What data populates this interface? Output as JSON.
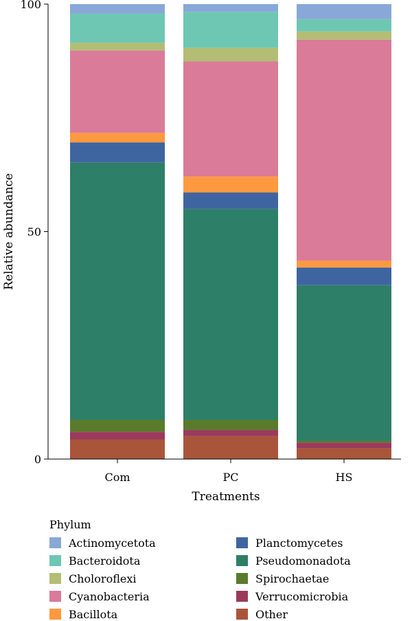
{
  "chart_data": {
    "type": "bar",
    "stacked": true,
    "xlabel": "Treatments",
    "ylabel": "Relative abundance",
    "ylim": [
      0,
      100
    ],
    "yticks": [
      0,
      50,
      100
    ],
    "categories": [
      "Com",
      "PC",
      "HS"
    ],
    "grid": false,
    "legend": {
      "title": "Phylum",
      "placement": "bottom",
      "columns": 2
    },
    "series": [
      {
        "name": "Other",
        "color": "#a9553a",
        "values": [
          4.3,
          5.0,
          2.4
        ]
      },
      {
        "name": "Verrucomicrobia",
        "color": "#9b3a5d",
        "values": [
          1.7,
          1.4,
          1.2
        ]
      },
      {
        "name": "Spirochaetae",
        "color": "#5a7a2c",
        "values": [
          2.6,
          2.2,
          0.4
        ]
      },
      {
        "name": "Pseudomonadota",
        "color": "#2e7f67",
        "values": [
          56.6,
          46.4,
          34.2
        ]
      },
      {
        "name": "Planctomycetes",
        "color": "#3f65a1",
        "values": [
          4.4,
          3.6,
          3.9
        ]
      },
      {
        "name": "Bacillota",
        "color": "#ff9940",
        "values": [
          2.1,
          3.5,
          1.5
        ]
      },
      {
        "name": "Cyanobacteria",
        "color": "#d97b99",
        "values": [
          18.1,
          25.3,
          48.6
        ]
      },
      {
        "name": "Choloroflexi",
        "color": "#b3bd74",
        "values": [
          1.7,
          3.0,
          1.8
        ]
      },
      {
        "name": "Bacteroidota",
        "color": "#6dc7b2",
        "values": [
          6.4,
          7.9,
          2.7
        ]
      },
      {
        "name": "Actinomycetota",
        "color": "#88a8d8",
        "values": [
          2.1,
          1.7,
          3.3
        ]
      }
    ],
    "legend_order": [
      "Actinomycetota",
      "Bacteroidota",
      "Choloroflexi",
      "Cyanobacteria",
      "Bacillota",
      "Planctomycetes",
      "Pseudomonadota",
      "Spirochaetae",
      "Verrucomicrobia",
      "Other"
    ]
  }
}
